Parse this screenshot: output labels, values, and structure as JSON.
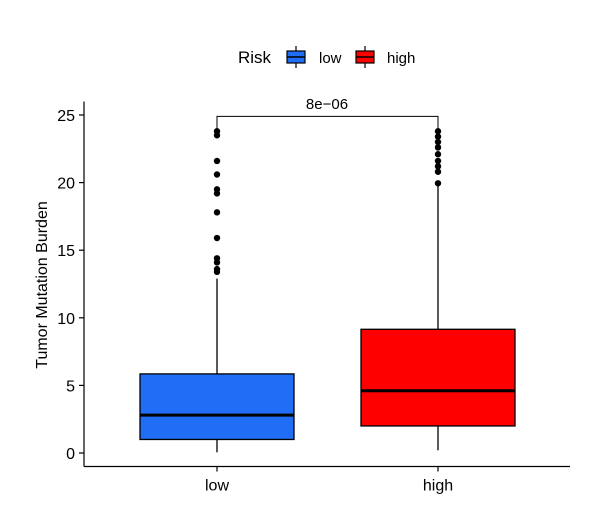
{
  "chart_data": {
    "type": "box",
    "ylabel": "Tumor Mutation Burden",
    "categories": [
      "low",
      "high"
    ],
    "ylim": [
      -1,
      26
    ],
    "yticks": [
      0,
      5,
      10,
      15,
      20,
      25
    ],
    "legend": {
      "title": "Risk",
      "position": "top",
      "items": [
        {
          "label": "low",
          "color": "#1f6ef5"
        },
        {
          "label": "high",
          "color": "#ff0000"
        }
      ]
    },
    "series": [
      {
        "name": "low",
        "color": "#1f6ef5",
        "whisker_low": 0.05,
        "q1": 1.0,
        "median": 2.8,
        "q3": 5.85,
        "whisker_high": 12.9,
        "outliers": [
          13.4,
          13.6,
          14.1,
          14.4,
          15.9,
          17.8,
          19.2,
          19.5,
          20.6,
          21.6,
          23.5,
          23.8
        ]
      },
      {
        "name": "high",
        "color": "#ff0000",
        "whisker_low": 0.2,
        "q1": 2.0,
        "median": 4.6,
        "q3": 9.15,
        "whisker_high": 19.9,
        "outliers": [
          19.95,
          20.8,
          21.2,
          21.6,
          22.1,
          22.6,
          23.0,
          23.4,
          23.8
        ]
      }
    ],
    "annotation": {
      "label": "8e−06",
      "y": 24.9
    }
  }
}
